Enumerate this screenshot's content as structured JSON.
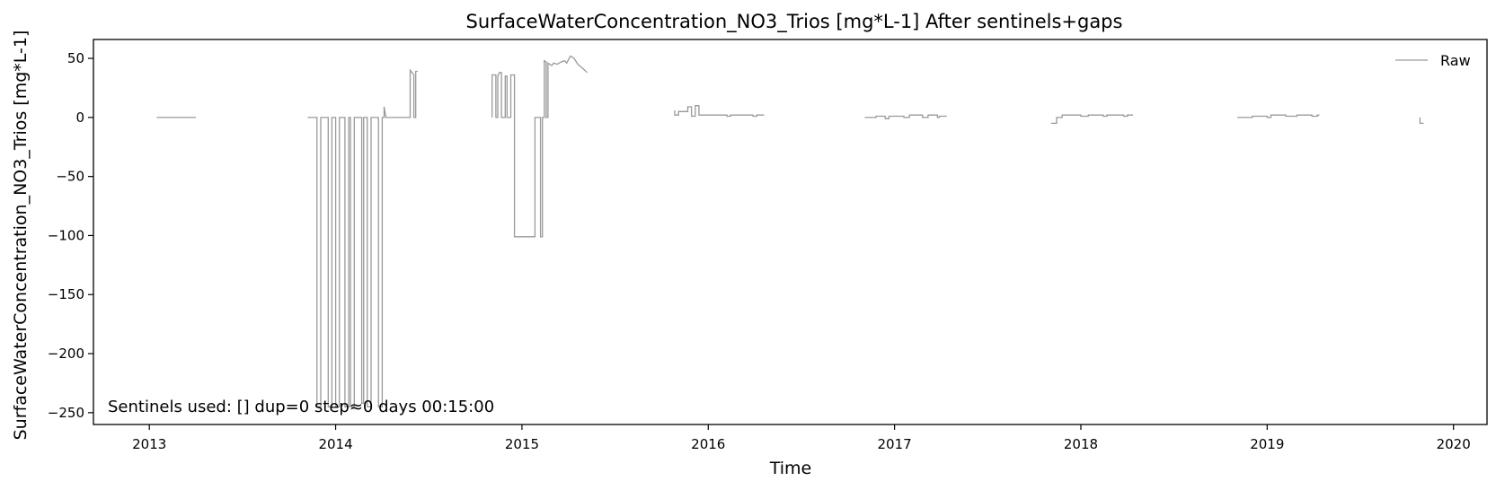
{
  "chart_data": {
    "type": "line",
    "title": "SurfaceWaterConcentration_NO3_Trios [mg*L-1] After sentinels+gaps",
    "xlabel": "Time",
    "ylabel": "SurfaceWaterConcentration_NO3_Trios [mg*L-1]",
    "xlim": [
      2012.7,
      2020.18
    ],
    "ylim": [
      -260,
      66
    ],
    "xticks": [
      {
        "value": 2013,
        "label": "2013"
      },
      {
        "value": 2014,
        "label": "2014"
      },
      {
        "value": 2015,
        "label": "2015"
      },
      {
        "value": 2016,
        "label": "2016"
      },
      {
        "value": 2017,
        "label": "2017"
      },
      {
        "value": 2018,
        "label": "2018"
      },
      {
        "value": 2019,
        "label": "2019"
      },
      {
        "value": 2020,
        "label": "2020"
      }
    ],
    "yticks": [
      {
        "value": 50,
        "label": "50"
      },
      {
        "value": 0,
        "label": "0"
      },
      {
        "value": -50,
        "label": "−50"
      },
      {
        "value": -100,
        "label": "−100"
      },
      {
        "value": -150,
        "label": "−150"
      },
      {
        "value": -200,
        "label": "−200"
      },
      {
        "value": -250,
        "label": "−250"
      }
    ],
    "grid": false,
    "legend": {
      "position": "top-right",
      "entries": [
        "Raw"
      ]
    },
    "annotation": "Sentinels used: []  dup=0  step≈0 days 00:15:00",
    "series": [
      {
        "name": "Raw",
        "color": "#999999",
        "segments": [
          [
            [
              2013.04,
              0
            ],
            [
              2013.25,
              0
            ]
          ],
          [
            [
              2013.85,
              0
            ],
            [
              2013.9,
              0
            ],
            [
              2013.9,
              -245
            ],
            [
              2013.92,
              -245
            ],
            [
              2013.92,
              0
            ],
            [
              2013.96,
              0
            ],
            [
              2013.96,
              -245
            ],
            [
              2013.98,
              -245
            ],
            [
              2013.98,
              0
            ],
            [
              2014.0,
              0
            ],
            [
              2014.0,
              -245
            ],
            [
              2014.02,
              -245
            ],
            [
              2014.02,
              0
            ],
            [
              2014.05,
              0
            ],
            [
              2014.05,
              -245
            ],
            [
              2014.07,
              -245
            ],
            [
              2014.07,
              0
            ],
            [
              2014.08,
              0
            ],
            [
              2014.08,
              -245
            ],
            [
              2014.1,
              -245
            ],
            [
              2014.1,
              0
            ],
            [
              2014.14,
              0
            ],
            [
              2014.14,
              -242
            ],
            [
              2014.15,
              -242
            ],
            [
              2014.15,
              0
            ],
            [
              2014.17,
              0
            ],
            [
              2014.17,
              -245
            ],
            [
              2014.19,
              -245
            ],
            [
              2014.19,
              0
            ],
            [
              2014.21,
              0
            ],
            [
              2014.21,
              0
            ],
            [
              2014.23,
              0
            ],
            [
              2014.23,
              -245
            ],
            [
              2014.25,
              -245
            ],
            [
              2014.25,
              0
            ],
            [
              2014.26,
              0
            ],
            [
              2014.26,
              9
            ],
            [
              2014.27,
              0
            ],
            [
              2014.38,
              0
            ],
            [
              2014.4,
              0
            ],
            [
              2014.4,
              40
            ],
            [
              2014.41,
              38
            ],
            [
              2014.42,
              36
            ],
            [
              2014.42,
              0
            ],
            [
              2014.43,
              0
            ],
            [
              2014.43,
              39
            ],
            [
              2014.44,
              39
            ]
          ],
          [
            [
              2014.84,
              0
            ],
            [
              2014.84,
              36
            ],
            [
              2014.86,
              36
            ],
            [
              2014.86,
              0
            ],
            [
              2014.87,
              0
            ],
            [
              2014.87,
              35
            ],
            [
              2014.88,
              38
            ],
            [
              2014.89,
              38
            ],
            [
              2014.89,
              0
            ],
            [
              2014.91,
              0
            ],
            [
              2014.91,
              35
            ],
            [
              2014.92,
              35
            ],
            [
              2014.92,
              0
            ],
            [
              2014.94,
              0
            ],
            [
              2014.94,
              36
            ],
            [
              2014.96,
              36
            ],
            [
              2014.96,
              -101
            ],
            [
              2015.02,
              -101
            ],
            [
              2015.07,
              -101
            ],
            [
              2015.07,
              0
            ],
            [
              2015.1,
              0
            ],
            [
              2015.1,
              -101
            ],
            [
              2015.11,
              -101
            ],
            [
              2015.11,
              0
            ],
            [
              2015.12,
              0
            ],
            [
              2015.12,
              48
            ],
            [
              2015.13,
              47
            ],
            [
              2015.13,
              0
            ],
            [
              2015.14,
              0
            ],
            [
              2015.14,
              46
            ],
            [
              2015.16,
              44
            ],
            [
              2015.17,
              46
            ],
            [
              2015.19,
              45
            ],
            [
              2015.21,
              47
            ],
            [
              2015.23,
              48
            ],
            [
              2015.24,
              46
            ],
            [
              2015.26,
              52
            ],
            [
              2015.28,
              50
            ],
            [
              2015.3,
              45
            ],
            [
              2015.33,
              41
            ],
            [
              2015.35,
              38
            ]
          ],
          [
            [
              2015.82,
              6
            ],
            [
              2015.82,
              2
            ],
            [
              2015.84,
              2
            ],
            [
              2015.84,
              5
            ],
            [
              2015.87,
              5
            ],
            [
              2015.87,
              5
            ],
            [
              2015.89,
              5
            ],
            [
              2015.89,
              9
            ],
            [
              2015.91,
              9
            ],
            [
              2015.91,
              1
            ],
            [
              2015.93,
              1
            ],
            [
              2015.93,
              10
            ],
            [
              2015.95,
              10
            ],
            [
              2015.95,
              2
            ],
            [
              2015.98,
              2
            ],
            [
              2016.1,
              2
            ],
            [
              2016.1,
              1
            ],
            [
              2016.12,
              1
            ],
            [
              2016.12,
              2
            ],
            [
              2016.24,
              2
            ],
            [
              2016.24,
              1
            ],
            [
              2016.26,
              1
            ],
            [
              2016.26,
              2
            ],
            [
              2016.3,
              2
            ]
          ],
          [
            [
              2016.84,
              0
            ],
            [
              2016.9,
              0
            ],
            [
              2016.9,
              1
            ],
            [
              2016.95,
              1
            ],
            [
              2016.95,
              -1
            ],
            [
              2016.97,
              -1
            ],
            [
              2016.97,
              1
            ],
            [
              2017.05,
              1
            ],
            [
              2017.05,
              0
            ],
            [
              2017.08,
              0
            ],
            [
              2017.08,
              2
            ],
            [
              2017.15,
              2
            ],
            [
              2017.15,
              0
            ],
            [
              2017.18,
              0
            ],
            [
              2017.18,
              2
            ],
            [
              2017.23,
              2
            ],
            [
              2017.23,
              0
            ],
            [
              2017.24,
              0
            ],
            [
              2017.24,
              1
            ],
            [
              2017.28,
              1
            ]
          ],
          [
            [
              2017.84,
              -5
            ],
            [
              2017.87,
              -5
            ],
            [
              2017.87,
              0
            ],
            [
              2017.9,
              0
            ],
            [
              2017.9,
              2
            ],
            [
              2018.0,
              2
            ],
            [
              2018.0,
              1
            ],
            [
              2018.04,
              1
            ],
            [
              2018.04,
              2
            ],
            [
              2018.12,
              2
            ],
            [
              2018.12,
              1
            ],
            [
              2018.14,
              1
            ],
            [
              2018.14,
              2
            ],
            [
              2018.23,
              2
            ],
            [
              2018.23,
              1
            ],
            [
              2018.25,
              1
            ],
            [
              2018.25,
              2
            ],
            [
              2018.28,
              2
            ]
          ],
          [
            [
              2018.84,
              0
            ],
            [
              2018.92,
              0
            ],
            [
              2018.92,
              1
            ],
            [
              2019.0,
              1
            ],
            [
              2019.0,
              0
            ],
            [
              2019.02,
              0
            ],
            [
              2019.02,
              2
            ],
            [
              2019.1,
              2
            ],
            [
              2019.1,
              1
            ],
            [
              2019.16,
              1
            ],
            [
              2019.16,
              2
            ],
            [
              2019.24,
              2
            ],
            [
              2019.24,
              1
            ],
            [
              2019.27,
              1
            ],
            [
              2019.27,
              2
            ],
            [
              2019.28,
              2
            ]
          ],
          [
            [
              2019.82,
              0
            ],
            [
              2019.82,
              -5
            ],
            [
              2019.84,
              -5
            ]
          ]
        ]
      }
    ]
  }
}
